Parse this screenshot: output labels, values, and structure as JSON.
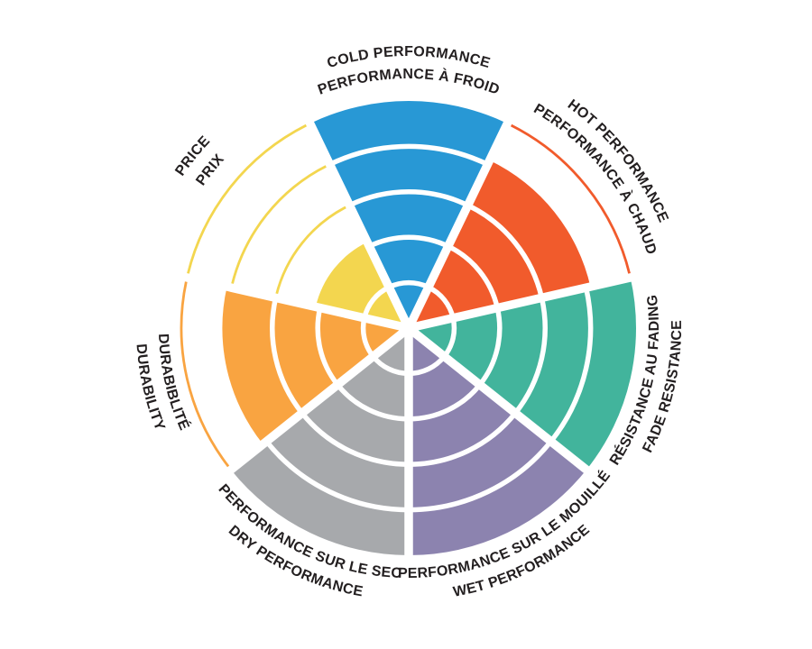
{
  "background_color": "#ffffff",
  "text_color": "#231f20",
  "chart_data": {
    "type": "pie",
    "variant": "polar-rose-rating-wheel",
    "description": "Tire characteristics rating wheel: 7 equal sectors, each filled to a rating level out of 5 concentric rings; unfilled rings shown as thin colored outline arcs",
    "rings_total": 5,
    "rating_scale": [
      1,
      2,
      3,
      4,
      5
    ],
    "grid": "concentric ring separators in white, radial white spokes between sectors",
    "legend_position": "none",
    "sectors": [
      {
        "id": "cold",
        "label_line1": "COLD PERFORMANCE",
        "label_line2": "PERFORMANCE À FROID",
        "value": 5,
        "color": "#2898d5"
      },
      {
        "id": "hot",
        "label_line1": "HOT PERFORMANCE",
        "label_line2": "PERFORMANCE À CHAUD",
        "value": 4,
        "color": "#f15b2c"
      },
      {
        "id": "fade",
        "label_line1": "RÉSISTANCE AU FADING",
        "label_line2": "FADE RESISTANCE",
        "value": 5,
        "color": "#42b49c"
      },
      {
        "id": "wet",
        "label_line1": "PERFORMANCE SUR LE MOUILLÉ",
        "label_line2": "WET PERFORMANCE",
        "value": 5,
        "color": "#8c83af"
      },
      {
        "id": "dry",
        "label_line1": "PERFORMANCE SUR LE SEC",
        "label_line2": "DRY PERFORMANCE",
        "value": 5,
        "color": "#a7a9ac"
      },
      {
        "id": "durability",
        "label_line1": "DURABIBLITÉ",
        "label_line2": "DURABILITY",
        "value": 4,
        "color": "#f9a441"
      },
      {
        "id": "price",
        "label_line1": "PRICE",
        "label_line2": "PRIX",
        "value": 2,
        "color": "#f3d64f"
      }
    ]
  }
}
